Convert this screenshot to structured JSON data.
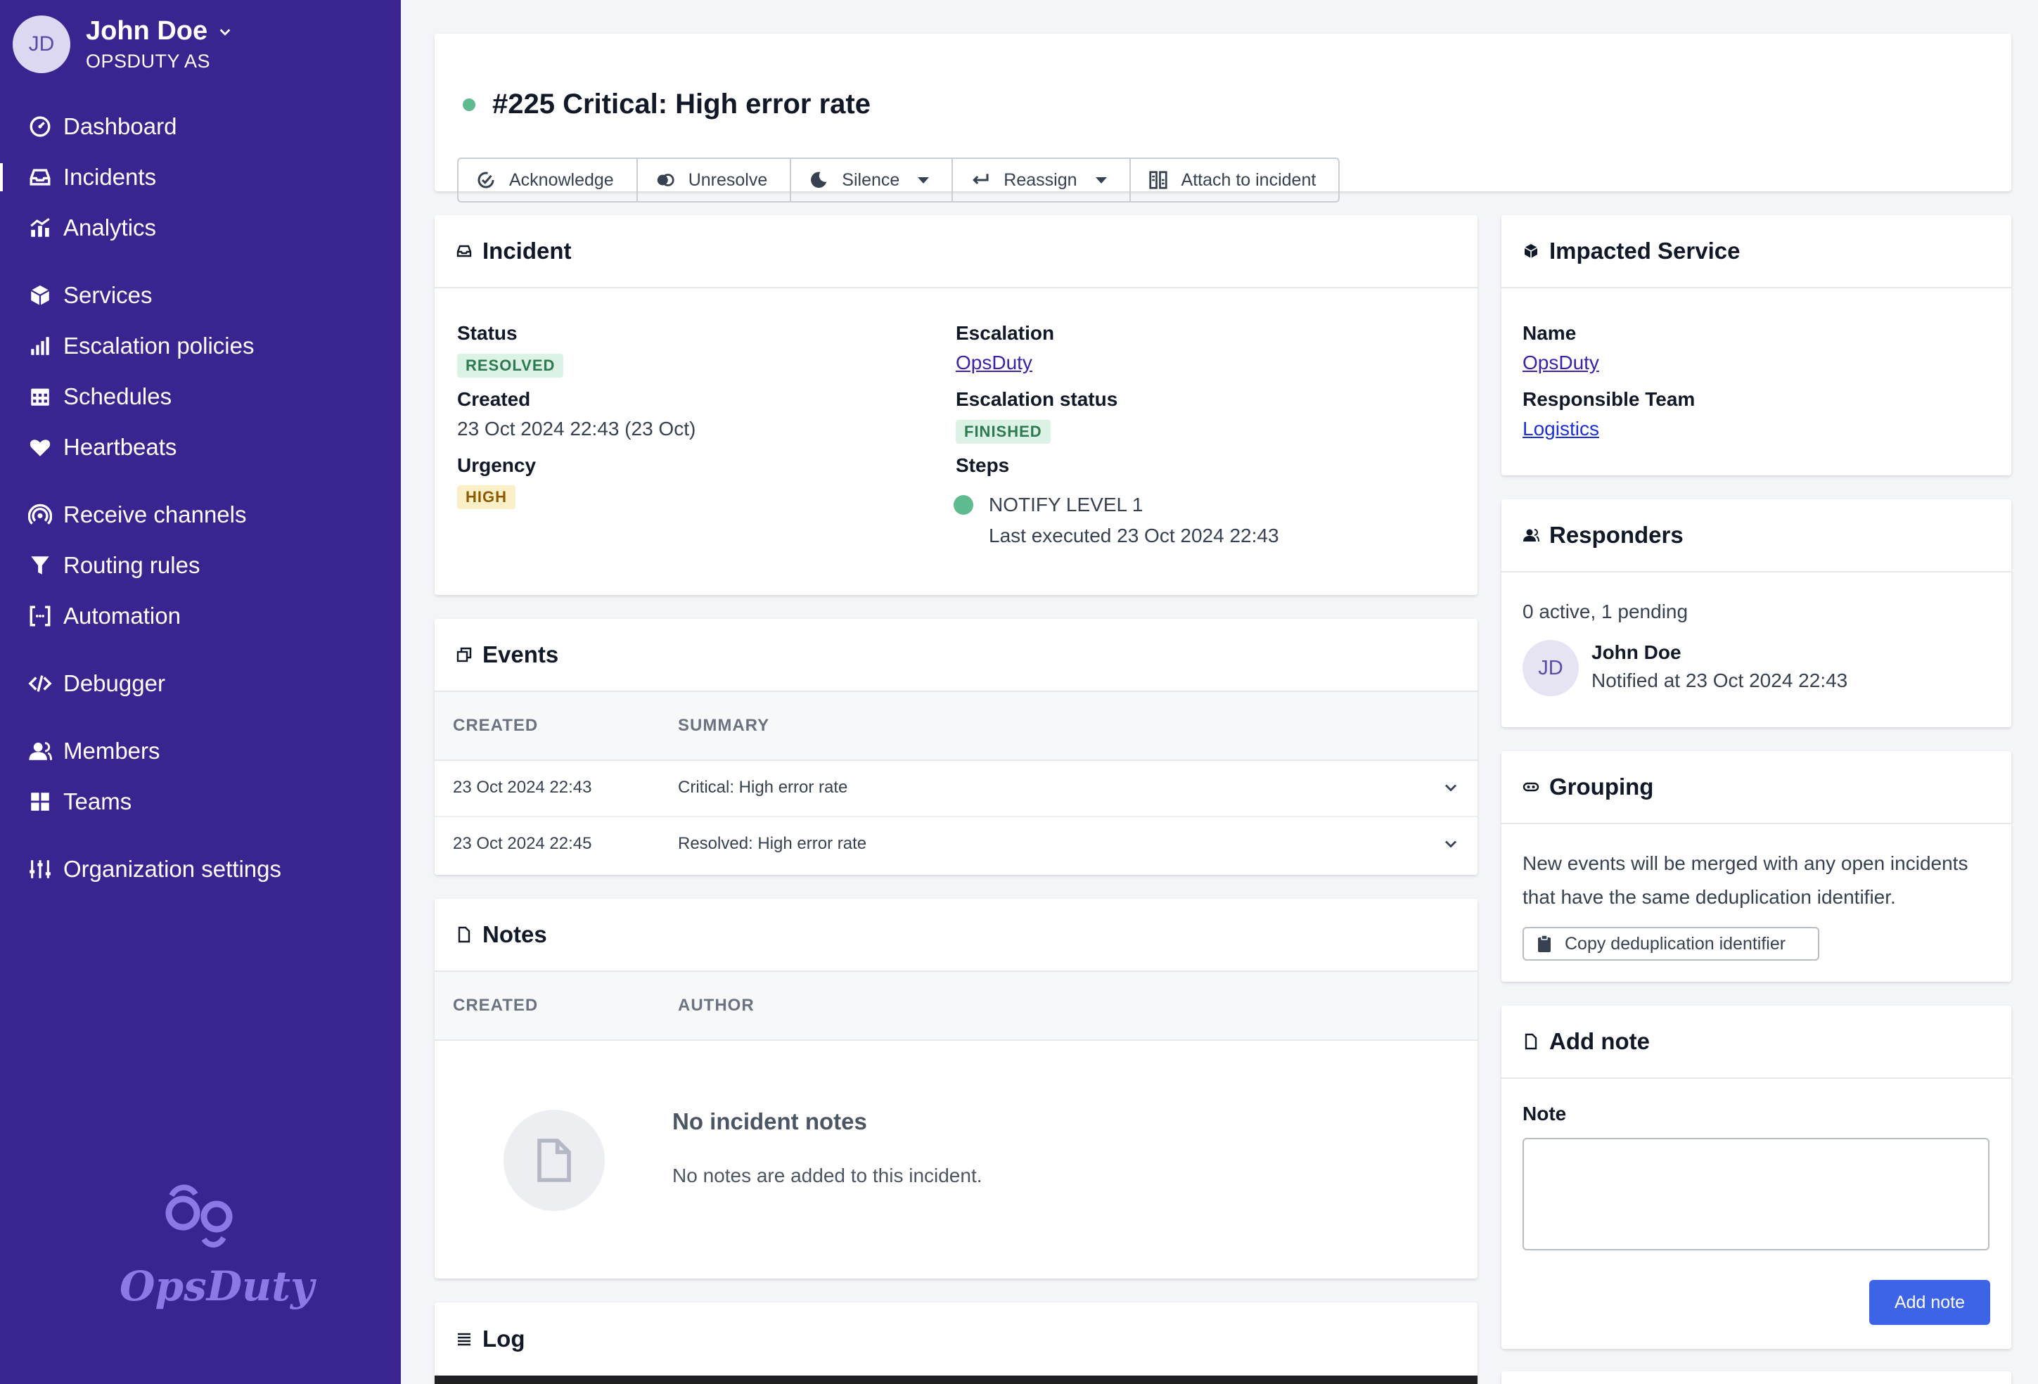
{
  "user": {
    "initials": "JD",
    "name": "John Doe",
    "org": "OPSDUTY AS"
  },
  "nav": {
    "dashboard": "Dashboard",
    "incidents": "Incidents",
    "analytics": "Analytics",
    "services": "Services",
    "escalation": "Escalation policies",
    "schedules": "Schedules",
    "heartbeats": "Heartbeats",
    "receive": "Receive channels",
    "routing": "Routing rules",
    "automation": "Automation",
    "debugger": "Debugger",
    "members": "Members",
    "teams": "Teams",
    "org_settings": "Organization settings"
  },
  "brand": "OpsDuty",
  "incident_title": "#225 Critical: High error rate",
  "actions": {
    "acknowledge": "Acknowledge",
    "unresolve": "Unresolve",
    "silence": "Silence",
    "reassign": "Reassign",
    "attach": "Attach to incident"
  },
  "incident": {
    "header": "Incident",
    "status_label": "Status",
    "status": "RESOLVED",
    "created_label": "Created",
    "created": "23 Oct 2024 22:43 (23 Oct)",
    "urgency_label": "Urgency",
    "urgency": "HIGH",
    "escalation_label": "Escalation",
    "escalation": "OpsDuty",
    "escalation_status_label": "Escalation status",
    "escalation_status": "FINISHED",
    "steps_label": "Steps",
    "step_name": "NOTIFY LEVEL 1",
    "step_detail": "Last executed 23 Oct 2024 22:43"
  },
  "events": {
    "header": "Events",
    "col_created": "CREATED",
    "col_summary": "SUMMARY",
    "rows": [
      {
        "created": "23 Oct 2024 22:43",
        "summary": "Critical: High error rate"
      },
      {
        "created": "23 Oct 2024 22:45",
        "summary": "Resolved: High error rate"
      }
    ]
  },
  "notes": {
    "header": "Notes",
    "col_created": "CREATED",
    "col_author": "AUTHOR",
    "empty_title": "No incident notes",
    "empty_text": "No notes are added to this incident."
  },
  "log": {
    "header": "Log"
  },
  "service": {
    "header": "Impacted Service",
    "name_label": "Name",
    "name": "OpsDuty",
    "team_label": "Responsible Team",
    "team": "Logistics"
  },
  "responders": {
    "header": "Responders",
    "summary": "0 active, 1 pending",
    "initials": "JD",
    "name": "John Doe",
    "notified": "Notified at 23 Oct 2024 22:43"
  },
  "grouping": {
    "header": "Grouping",
    "text_line1": "New events will be merged with any open incidents",
    "text_line2": "that have the same deduplication identifier.",
    "copy_button": "Copy deduplication identifier"
  },
  "add_note": {
    "header": "Add note",
    "label": "Note",
    "value": "",
    "button": "Add note"
  }
}
